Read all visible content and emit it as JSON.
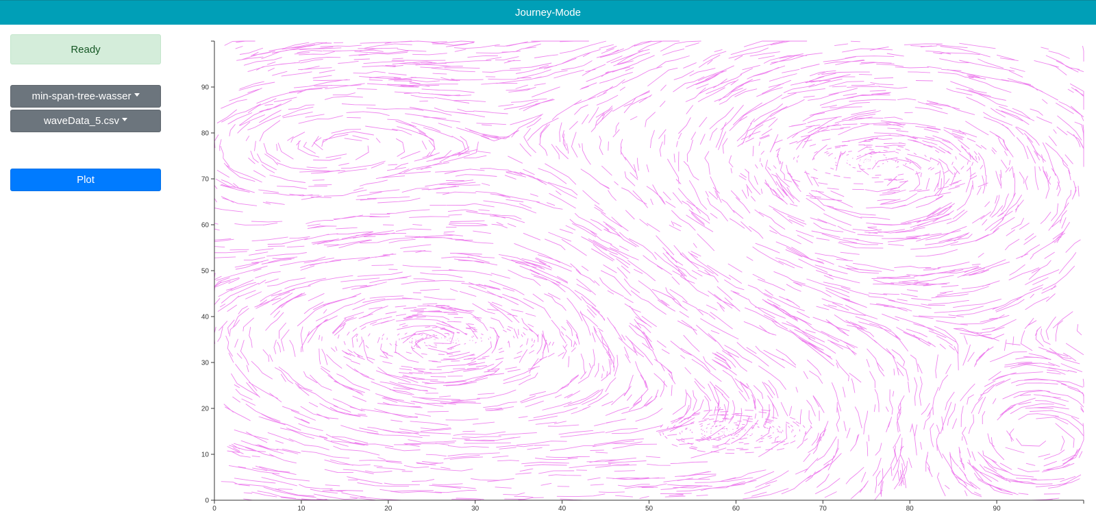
{
  "app": {
    "title": "Journey-Mode"
  },
  "sidebar": {
    "status": "Ready",
    "algorithm_select": "min-span-tree-wasser",
    "dataset_select": "waveData_5.csv",
    "plot_label": "Plot"
  },
  "colors": {
    "header": "#009fb7",
    "status_bg": "#d4edda",
    "status_text": "#155724",
    "dropdown": "#6c757d",
    "primary": "#007bff",
    "edges": "#ee82ee"
  },
  "chart_data": {
    "type": "line",
    "title": "",
    "xlabel": "",
    "ylabel": "",
    "xlim": [
      0,
      100
    ],
    "ylim": [
      0,
      100
    ],
    "x_ticks": [
      "0",
      "10",
      "20",
      "30",
      "40",
      "50",
      "60",
      "70",
      "80",
      "90"
    ],
    "y_ticks": [
      "0",
      "10",
      "20",
      "30",
      "40",
      "50",
      "60",
      "70",
      "80",
      "90"
    ],
    "grid": false,
    "series": [
      {
        "name": "",
        "color": "#ee82ee"
      }
    ],
    "vortices": [
      {
        "x": 60,
        "y": 15,
        "r": 18,
        "spin": 1
      },
      {
        "x": 75,
        "y": 74,
        "r": 34,
        "spin": -1
      },
      {
        "x": 27,
        "y": 35,
        "r": 30,
        "spin": 1
      },
      {
        "x": 12,
        "y": 75,
        "r": 25,
        "spin": -1
      },
      {
        "x": 93,
        "y": 15,
        "r": 18,
        "spin": -1
      }
    ]
  }
}
